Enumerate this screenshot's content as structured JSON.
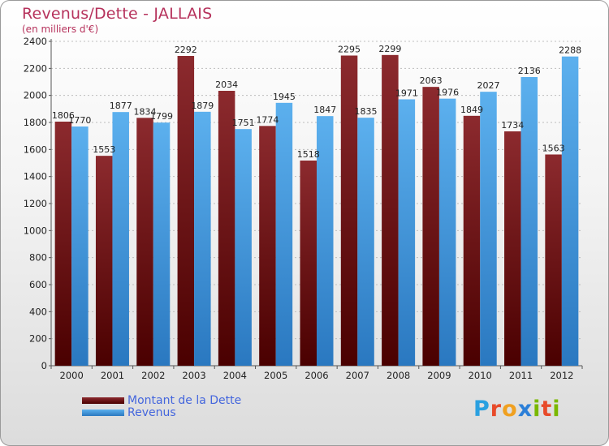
{
  "chart_data": {
    "type": "bar",
    "title": "Revenus/Dette - JALLAIS",
    "subtitle": "(en milliers d'€)",
    "categories": [
      "2000",
      "2001",
      "2002",
      "2003",
      "2004",
      "2005",
      "2006",
      "2007",
      "2008",
      "2009",
      "2010",
      "2011",
      "2012"
    ],
    "series": [
      {
        "name": "Montant de la Dette",
        "color": "#7a1a1e",
        "values": [
          1806,
          1553,
          1834,
          2292,
          2034,
          1774,
          1518,
          2295,
          2299,
          2063,
          1849,
          1734,
          1563
        ]
      },
      {
        "name": "Revenus",
        "color": "#3a94dc",
        "values": [
          1770,
          1877,
          1799,
          1879,
          1751,
          1945,
          1847,
          1835,
          1971,
          1976,
          2027,
          2136,
          2288
        ]
      }
    ],
    "ylim": [
      0,
      2400
    ],
    "yticks": [
      0,
      200,
      400,
      600,
      800,
      1000,
      1200,
      1400,
      1600,
      1800,
      2000,
      2200,
      2400
    ],
    "grid": true,
    "legend_position": "bottom-left"
  },
  "logo": {
    "text": "Proxiti",
    "letters": [
      "P",
      "r",
      "o",
      "x",
      "i",
      "t",
      "i"
    ],
    "colors": [
      "#2aa0e0",
      "#e84a2a",
      "#f0a020",
      "#2b7fd8",
      "#7ab800",
      "#e84a2a",
      "#7ab800"
    ]
  }
}
